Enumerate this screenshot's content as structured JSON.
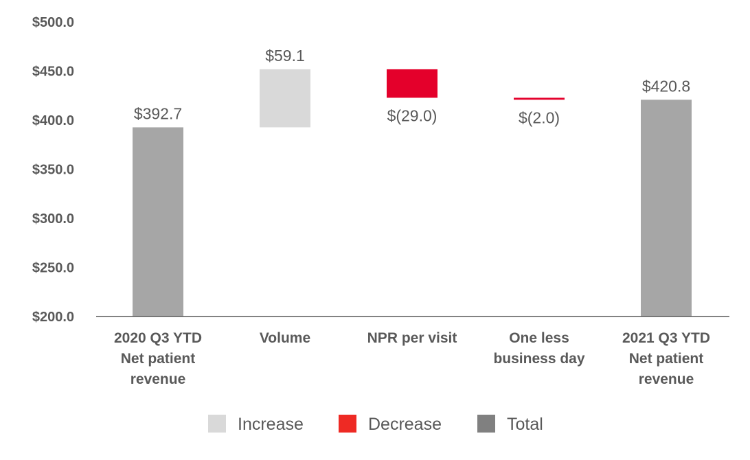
{
  "chart_data": {
    "type": "bar",
    "subtype": "waterfall",
    "categories": [
      [
        "2020 Q3 YTD",
        "Net patient",
        "revenue"
      ],
      [
        "Volume"
      ],
      [
        "NPR per visit"
      ],
      [
        "One less",
        "business day"
      ],
      [
        "2021 Q3 YTD",
        "Net patient",
        "revenue"
      ]
    ],
    "steps": [
      {
        "kind": "total",
        "value": 392.7,
        "label": "$392.7"
      },
      {
        "kind": "increase",
        "value": 59.1,
        "label": "$59.1"
      },
      {
        "kind": "decrease",
        "value": -29.0,
        "label": "$(29.0)"
      },
      {
        "kind": "decrease",
        "value": -2.0,
        "label": "$(2.0)"
      },
      {
        "kind": "total",
        "value": 420.8,
        "label": "$420.8"
      }
    ],
    "ylim": [
      200,
      500
    ],
    "yticks": [
      {
        "value": 500,
        "label": "$500.0"
      },
      {
        "value": 450,
        "label": "$450.0"
      },
      {
        "value": 400,
        "label": "$400.0"
      },
      {
        "value": 350,
        "label": "$350.0"
      },
      {
        "value": 300,
        "label": "$300.0"
      },
      {
        "value": 250,
        "label": "$250.0"
      },
      {
        "value": 200,
        "label": "$200.0"
      }
    ],
    "grid": false,
    "legend_position": "bottom",
    "legend": [
      {
        "name": "Increase",
        "kind": "increase"
      },
      {
        "name": "Decrease",
        "kind": "decrease"
      },
      {
        "name": "Total",
        "kind": "total"
      }
    ],
    "colors": {
      "increase": "#d9d9d9",
      "decrease": "#e4002b",
      "total": "#a6a6a6",
      "legend_decrease": "#ee2a24",
      "legend_total": "#808080",
      "axis": "#595959",
      "text": "#595959"
    }
  }
}
